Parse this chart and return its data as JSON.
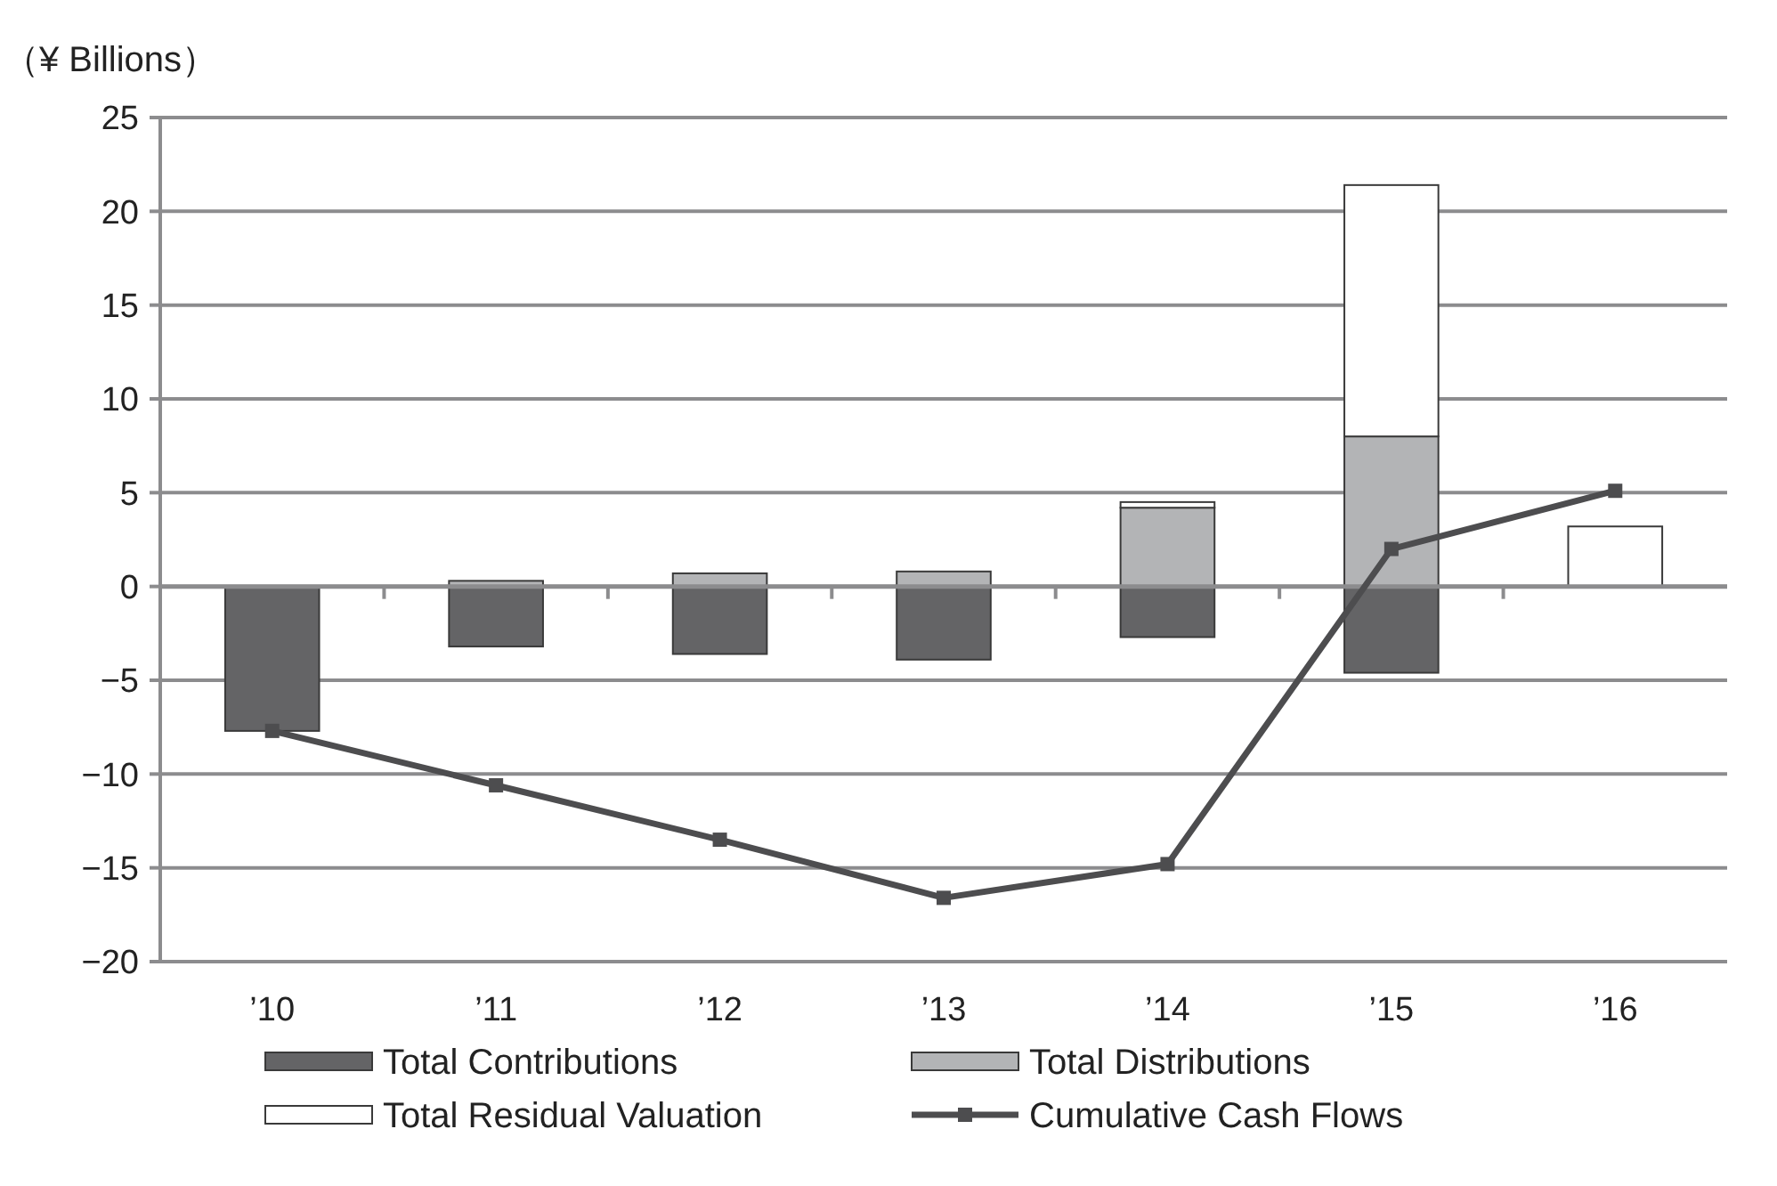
{
  "chart_data": {
    "type": "bar",
    "ylabel": "（¥ Billions）",
    "categories": [
      "’10",
      "’11",
      "’12",
      "’13",
      "’14",
      "’15",
      "’16"
    ],
    "stacked": true,
    "ylim": [
      -20,
      25
    ],
    "yticks": [
      -20,
      -15,
      -10,
      -5,
      0,
      5,
      10,
      15,
      20,
      25
    ],
    "grid": "y",
    "legend": "bottom",
    "series": [
      {
        "name": "Total Contributions",
        "color": "#646466",
        "values": [
          -7.7,
          -3.2,
          -3.6,
          -3.9,
          -2.7,
          -4.6,
          0
        ]
      },
      {
        "name": "Total Distributions",
        "color": "#b3b4b6",
        "values": [
          0,
          0.3,
          0.7,
          0.8,
          4.2,
          8.0,
          0
        ]
      },
      {
        "name": "Total Residual Valuation",
        "color": "#ffffff",
        "values": [
          0,
          0,
          0,
          0,
          0.3,
          13.4,
          3.2
        ]
      },
      {
        "name": "Cumulative Cash Flows",
        "type": "line",
        "color": "#4d4d4f",
        "marker": "square",
        "values": [
          -7.7,
          -10.6,
          -13.5,
          -16.6,
          -14.8,
          2.0,
          5.1
        ]
      }
    ]
  }
}
